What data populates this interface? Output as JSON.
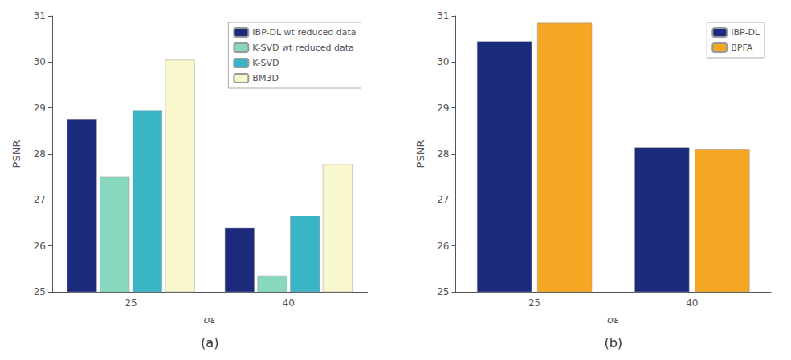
{
  "chart_data": [
    {
      "type": "bar",
      "title": "(a)",
      "ylabel": "PSNR",
      "xlabel": "σε",
      "categories": [
        "25",
        "40"
      ],
      "series": [
        {
          "name": "IBP-DL wt reduced data",
          "color": "#1b2a7b",
          "values": [
            28.75,
            26.4
          ]
        },
        {
          "name": "K-SVD wt reduced data",
          "color": "#88d8c0",
          "values": [
            27.5,
            25.35
          ]
        },
        {
          "name": "K-SVD",
          "color": "#3ab5c6",
          "values": [
            28.95,
            26.65
          ]
        },
        {
          "name": "BM3D",
          "color": "#f8f8cc",
          "values": [
            30.05,
            27.78
          ]
        }
      ],
      "ylim": [
        25,
        31
      ],
      "yticks": [
        25,
        26,
        27,
        28,
        29,
        30,
        31
      ],
      "grid": false,
      "legend": "upper right"
    },
    {
      "type": "bar",
      "title": "(b)",
      "ylabel": "PSNR",
      "xlabel": "σε",
      "categories": [
        "25",
        "40"
      ],
      "series": [
        {
          "name": "IBP-DL",
          "color": "#1b2a7b",
          "values": [
            30.45,
            28.15
          ]
        },
        {
          "name": "BPFA",
          "color": "#f5a623",
          "values": [
            30.85,
            28.1
          ]
        }
      ],
      "ylim": [
        25,
        31
      ],
      "yticks": [
        25,
        26,
        27,
        28,
        29,
        30,
        31
      ],
      "grid": false,
      "legend": "upper right"
    }
  ]
}
